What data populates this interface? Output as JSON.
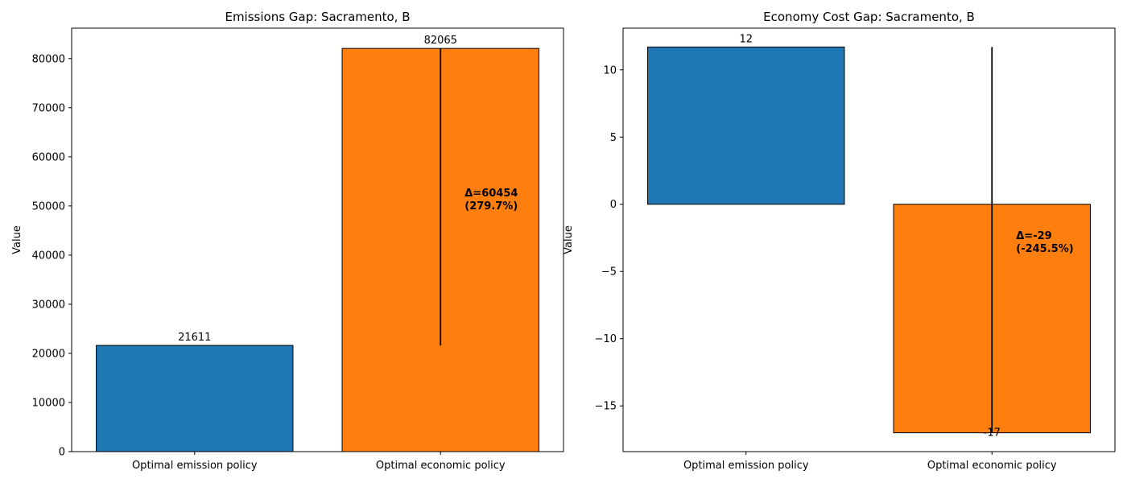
{
  "chart_data": [
    {
      "type": "bar",
      "title": "Emissions Gap: Sacramento, B",
      "xlabel": "",
      "ylabel": "Value",
      "categories": [
        "Optimal emission policy",
        "Optimal economic policy"
      ],
      "values": [
        21611,
        82065
      ],
      "value_labels": [
        "21611",
        "82065"
      ],
      "bar_colors": [
        "#1f77b4",
        "#ff7f0e"
      ],
      "ylim": [
        0,
        86188
      ],
      "yticks": [
        0,
        10000,
        20000,
        30000,
        40000,
        50000,
        60000,
        70000,
        80000
      ],
      "ytick_labels": [
        "0",
        "10000",
        "20000",
        "30000",
        "40000",
        "50000",
        "60000",
        "70000",
        "80000"
      ],
      "gap_annotation": {
        "lines": [
          "Δ=60454",
          "(279.7%)"
        ],
        "from": 21611,
        "to": 82065,
        "y": 50000
      }
    },
    {
      "type": "bar",
      "title": "Economy Cost Gap: Sacramento, B",
      "xlabel": "",
      "ylabel": "Value",
      "categories": [
        "Optimal emission policy",
        "Optimal economic policy"
      ],
      "values": [
        11.7,
        -17.0
      ],
      "value_labels": [
        "12",
        "-17"
      ],
      "bar_colors": [
        "#1f77b4",
        "#ff7f0e"
      ],
      "ylim": [
        -18.4,
        13.1
      ],
      "yticks": [
        -15,
        -10,
        -5,
        0,
        5,
        10
      ],
      "ytick_labels": [
        "−15",
        "−10",
        "−5",
        "0",
        "5",
        "10"
      ],
      "gap_annotation": {
        "lines": [
          "Δ=-29",
          "(-245.5%)"
        ],
        "from": 11.7,
        "to": -17.0,
        "y": -3.3
      }
    }
  ]
}
